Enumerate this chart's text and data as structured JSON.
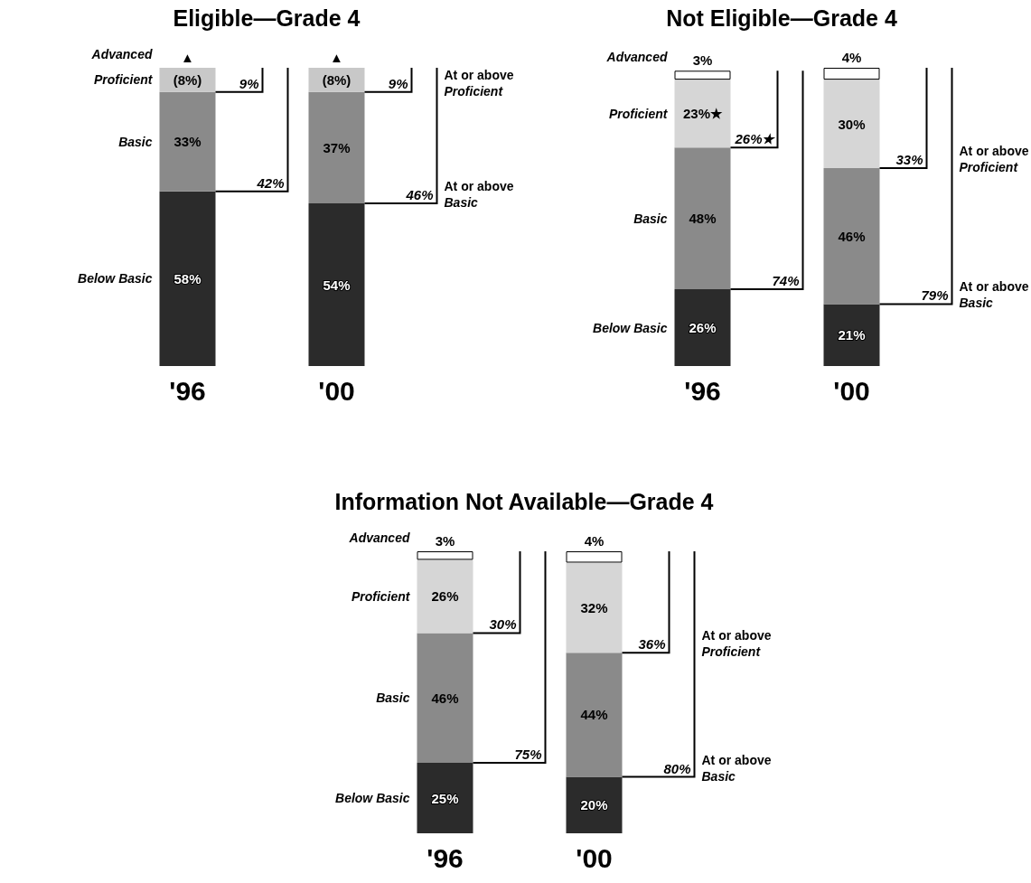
{
  "chart_data": [
    {
      "type": "bar",
      "stacked": true,
      "title": "Eligible—Grade 4",
      "categories": [
        "'96",
        "'00"
      ],
      "series": [
        {
          "name": "Below Basic",
          "color": "#2b2b2b",
          "values": [
            58,
            54
          ],
          "value_labels": [
            "58%",
            "54%"
          ]
        },
        {
          "name": "Basic",
          "color": "#8a8a8a",
          "values": [
            33,
            37
          ],
          "value_labels": [
            "33%",
            "37%"
          ]
        },
        {
          "name": "Proficient",
          "color": "#c8c8c8",
          "values": [
            8,
            8
          ],
          "value_labels": [
            "(8%)",
            "(8%)"
          ]
        },
        {
          "name": "Advanced",
          "values": [
            0,
            0
          ],
          "value_labels": [
            "▲",
            "▲"
          ]
        }
      ],
      "annotations": [
        "9%",
        "42%",
        "9%",
        "46%",
        "At or above Proficient",
        "At or above Basic"
      ]
    },
    {
      "type": "bar",
      "stacked": true,
      "title": "Not Eligible—Grade 4",
      "categories": [
        "'96",
        "'00"
      ],
      "series": [
        {
          "name": "Below Basic",
          "color": "#2b2b2b",
          "values": [
            26,
            21
          ],
          "value_labels": [
            "26%",
            "21%"
          ]
        },
        {
          "name": "Basic",
          "color": "#8a8a8a",
          "values": [
            48,
            46
          ],
          "value_labels": [
            "48%",
            "46%"
          ]
        },
        {
          "name": "Proficient",
          "color": "#d6d6d6",
          "values": [
            23,
            30
          ],
          "value_labels": [
            "23%★",
            "30%"
          ]
        },
        {
          "name": "Advanced",
          "color": "#ffffff",
          "values": [
            3,
            4
          ],
          "value_labels": [
            "3%",
            "4%"
          ]
        }
      ],
      "annotations": [
        "26%★",
        "74%",
        "33%",
        "79%",
        "At or above Proficient",
        "At or above Basic"
      ]
    },
    {
      "type": "bar",
      "stacked": true,
      "title": "Information Not Available—Grade 4",
      "categories": [
        "'96",
        "'00"
      ],
      "series": [
        {
          "name": "Below Basic",
          "color": "#2b2b2b",
          "values": [
            25,
            20
          ],
          "value_labels": [
            "25%",
            "20%"
          ]
        },
        {
          "name": "Basic",
          "color": "#8a8a8a",
          "values": [
            46,
            44
          ],
          "value_labels": [
            "46%",
            "44%"
          ]
        },
        {
          "name": "Proficient",
          "color": "#d6d6d6",
          "values": [
            26,
            32
          ],
          "value_labels": [
            "26%",
            "32%"
          ]
        },
        {
          "name": "Advanced",
          "color": "#ffffff",
          "values": [
            3,
            4
          ],
          "value_labels": [
            "3%",
            "4%"
          ]
        }
      ],
      "annotations": [
        "30%",
        "75%",
        "36%",
        "80%",
        "At or above Proficient",
        "At or above Basic"
      ]
    }
  ]
}
